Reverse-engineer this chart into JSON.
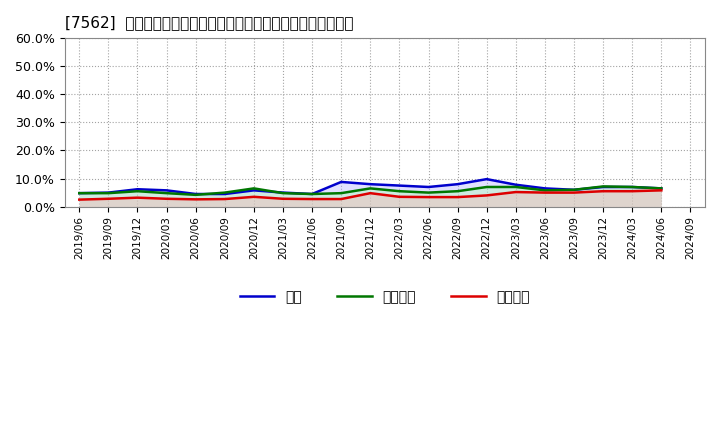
{
  "title": "[7562]  売上債権、在庫、買入債務の総資産に対する比率の推移",
  "x_labels": [
    "2019/06",
    "2019/09",
    "2019/12",
    "2020/03",
    "2020/06",
    "2020/09",
    "2020/12",
    "2021/03",
    "2021/06",
    "2021/09",
    "2021/12",
    "2022/03",
    "2022/06",
    "2022/09",
    "2022/12",
    "2023/03",
    "2023/06",
    "2023/09",
    "2023/12",
    "2024/03",
    "2024/06",
    "2024/09"
  ],
  "receivables": [
    2.5,
    2.8,
    3.2,
    2.8,
    2.6,
    2.7,
    3.5,
    2.8,
    2.7,
    2.7,
    4.8,
    3.5,
    3.4,
    3.4,
    4.0,
    5.2,
    5.0,
    5.0,
    5.5,
    5.5,
    5.8,
    null
  ],
  "inventory": [
    4.8,
    5.0,
    6.2,
    5.8,
    4.5,
    4.5,
    5.8,
    5.0,
    4.5,
    8.8,
    8.0,
    7.5,
    7.0,
    8.0,
    9.8,
    7.8,
    6.5,
    6.0,
    7.0,
    7.0,
    6.5,
    null
  ],
  "payables": [
    4.8,
    4.8,
    5.5,
    4.8,
    4.2,
    5.0,
    6.5,
    4.8,
    4.5,
    4.8,
    6.5,
    5.5,
    5.0,
    5.5,
    7.0,
    7.0,
    5.8,
    6.0,
    7.2,
    7.0,
    6.5,
    null
  ],
  "ylim": [
    0,
    60
  ],
  "yticks": [
    0,
    10,
    20,
    30,
    40,
    50,
    60
  ],
  "ytick_labels": [
    "0.0%",
    "10.0%",
    "20.0%",
    "30.0%",
    "40.0%",
    "50.0%",
    "60.0%"
  ],
  "legend_items": [
    "売上債権",
    "在庫",
    "買入債務"
  ],
  "line_colors": [
    "#dd0000",
    "#0000cc",
    "#007700"
  ],
  "fill_colors": [
    "#ffaaaa",
    "#aaaaff",
    "#aaffaa"
  ],
  "background_color": "#ffffff",
  "plot_bg_color": "#ffffff",
  "grid_color": "#999999",
  "title_fontsize": 11
}
